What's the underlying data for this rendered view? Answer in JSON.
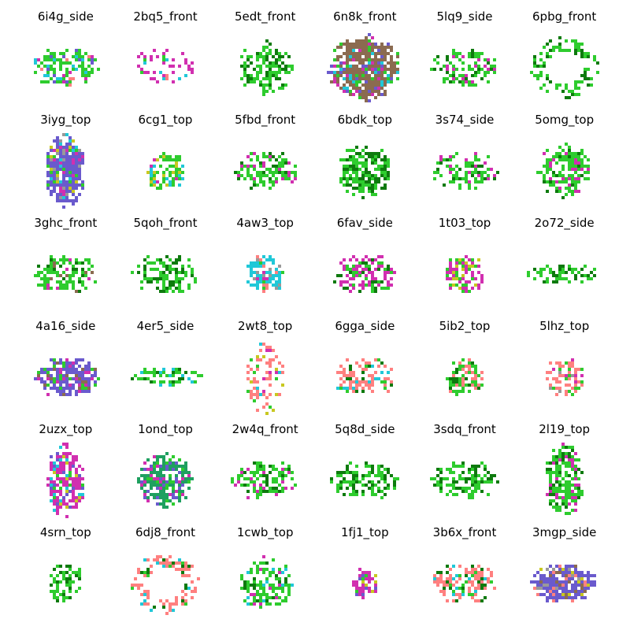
{
  "palette": [
    "#1fbf1f",
    "#2ecc2e",
    "#0e7a0e",
    "#d12fb0",
    "#ff8080",
    "#20c8d8",
    "#c8c820",
    "#6a5acd",
    "#8b6b50",
    "#999999"
  ],
  "items": [
    {
      "label": "6i4g_side",
      "dominant": "#2ecc2e",
      "mix": [
        "#ff8080",
        "#20c8d8",
        "#d12fb0",
        "#6a5acd"
      ],
      "density": 0.55,
      "shape": "wide"
    },
    {
      "label": "2bq5_front",
      "dominant": "#d12fb0",
      "mix": [
        "#2ecc2e",
        "#ff8080",
        "#20c8d8"
      ],
      "density": 0.35,
      "shape": "wide"
    },
    {
      "label": "5edt_front",
      "dominant": "#2ecc2e",
      "mix": [
        "#0e7a0e"
      ],
      "density": 0.55,
      "shape": "square"
    },
    {
      "label": "6n8k_front",
      "dominant": "#8b6b50",
      "mix": [
        "#d12fb0",
        "#2ecc2e",
        "#20c8d8",
        "#6a5acd"
      ],
      "density": 0.85,
      "shape": "big"
    },
    {
      "label": "5lq9_side",
      "dominant": "#2ecc2e",
      "mix": [
        "#0e7a0e",
        "#d12fb0"
      ],
      "density": 0.45,
      "shape": "wide"
    },
    {
      "label": "6pbg_front",
      "dominant": "#2ecc2e",
      "mix": [
        "#0e7a0e"
      ],
      "density": 0.45,
      "shape": "ring"
    },
    {
      "label": "3iyg_top",
      "dominant": "#6a5acd",
      "mix": [
        "#d12fb0",
        "#c8c820",
        "#20c8d8",
        "#2ecc2e",
        "#999999"
      ],
      "density": 0.9,
      "shape": "tall"
    },
    {
      "label": "6cg1_top",
      "dominant": "#2ecc2e",
      "mix": [
        "#d12fb0",
        "#c8c820",
        "#20c8d8"
      ],
      "density": 0.6,
      "shape": "small"
    },
    {
      "label": "5fbd_front",
      "dominant": "#2ecc2e",
      "mix": [
        "#0e7a0e",
        "#d12fb0"
      ],
      "density": 0.55,
      "shape": "wide"
    },
    {
      "label": "6bdk_top",
      "dominant": "#2ecc2e",
      "mix": [
        "#0e7a0e"
      ],
      "density": 0.65,
      "shape": "square"
    },
    {
      "label": "3s74_side",
      "dominant": "#2ecc2e",
      "mix": [
        "#0e7a0e",
        "#d12fb0"
      ],
      "density": 0.45,
      "shape": "wide"
    },
    {
      "label": "5omg_top",
      "dominant": "#2ecc2e",
      "mix": [
        "#0e7a0e",
        "#d12fb0"
      ],
      "density": 0.6,
      "shape": "square"
    },
    {
      "label": "3ghc_front",
      "dominant": "#2ecc2e",
      "mix": [
        "#0e7a0e",
        "#d12fb0",
        "#8b6b50"
      ],
      "density": 0.5,
      "shape": "wide"
    },
    {
      "label": "5qoh_front",
      "dominant": "#2ecc2e",
      "mix": [
        "#0e7a0e"
      ],
      "density": 0.45,
      "shape": "wide"
    },
    {
      "label": "4aw3_top",
      "dominant": "#20c8d8",
      "mix": [
        "#ff8080",
        "#2ecc2e",
        "#d12fb0",
        "#999999"
      ],
      "density": 0.6,
      "shape": "small"
    },
    {
      "label": "6fav_side",
      "dominant": "#d12fb0",
      "mix": [
        "#2ecc2e",
        "#0e7a0e"
      ],
      "density": 0.6,
      "shape": "wide"
    },
    {
      "label": "1t03_top",
      "dominant": "#d12fb0",
      "mix": [
        "#c8c820",
        "#2ecc2e"
      ],
      "density": 0.65,
      "shape": "small"
    },
    {
      "label": "2o72_side",
      "dominant": "#2ecc2e",
      "mix": [
        "#0e7a0e"
      ],
      "density": 0.5,
      "shape": "flat"
    },
    {
      "label": "4a16_side",
      "dominant": "#6a5acd",
      "mix": [
        "#d12fb0",
        "#8b6b50",
        "#2ecc2e"
      ],
      "density": 0.75,
      "shape": "wide"
    },
    {
      "label": "4er5_side",
      "dominant": "#2ecc2e",
      "mix": [
        "#0e7a0e",
        "#20c8d8"
      ],
      "density": 0.45,
      "shape": "flat"
    },
    {
      "label": "2wt8_top",
      "dominant": "#ff8080",
      "mix": [
        "#d12fb0",
        "#2ecc2e",
        "#c8c820",
        "#20c8d8"
      ],
      "density": 0.4,
      "shape": "tall"
    },
    {
      "label": "6gga_side",
      "dominant": "#ff8080",
      "mix": [
        "#2ecc2e",
        "#20c8d8",
        "#0e7a0e"
      ],
      "density": 0.45,
      "shape": "wide"
    },
    {
      "label": "5ib2_top",
      "dominant": "#2ecc2e",
      "mix": [
        "#ff8080",
        "#0e7a0e"
      ],
      "density": 0.6,
      "shape": "small"
    },
    {
      "label": "5lhz_top",
      "dominant": "#ff8080",
      "mix": [
        "#d12fb0",
        "#2ecc2e",
        "#999999"
      ],
      "density": 0.5,
      "shape": "small"
    },
    {
      "label": "2uzx_top",
      "dominant": "#d12fb0",
      "mix": [
        "#c8c820",
        "#2ecc2e",
        "#20c8d8",
        "#6a5acd"
      ],
      "density": 0.7,
      "shape": "tall"
    },
    {
      "label": "1ond_top",
      "dominant": "#1fa060",
      "mix": [
        "#2ecc2e",
        "#d12fb0",
        "#6a5acd"
      ],
      "density": 0.8,
      "shape": "square"
    },
    {
      "label": "2w4q_front",
      "dominant": "#2ecc2e",
      "mix": [
        "#0e7a0e",
        "#d12fb0"
      ],
      "density": 0.5,
      "shape": "wide"
    },
    {
      "label": "5q8d_side",
      "dominant": "#2ecc2e",
      "mix": [
        "#0e7a0e"
      ],
      "density": 0.55,
      "shape": "wide"
    },
    {
      "label": "3sdq_front",
      "dominant": "#2ecc2e",
      "mix": [
        "#0e7a0e"
      ],
      "density": 0.6,
      "shape": "wide"
    },
    {
      "label": "2l19_top",
      "dominant": "#2ecc2e",
      "mix": [
        "#0e7a0e",
        "#d12fb0"
      ],
      "density": 0.7,
      "shape": "tall"
    },
    {
      "label": "4srn_top",
      "dominant": "#2ecc2e",
      "mix": [
        "#0e7a0e"
      ],
      "density": 0.5,
      "shape": "small"
    },
    {
      "label": "6dj8_front",
      "dominant": "#ff8080",
      "mix": [
        "#2ecc2e",
        "#0e7a0e",
        "#20c8d8"
      ],
      "density": 0.5,
      "shape": "ring"
    },
    {
      "label": "1cwb_top",
      "dominant": "#2ecc2e",
      "mix": [
        "#0e7a0e",
        "#20c8d8",
        "#d12fb0"
      ],
      "density": 0.5,
      "shape": "square"
    },
    {
      "label": "1fj1_top",
      "dominant": "#d12fb0",
      "mix": [
        "#6a5acd",
        "#c8c820",
        "#2ecc2e"
      ],
      "density": 0.7,
      "shape": "tiny"
    },
    {
      "label": "3b6x_front",
      "dominant": "#ff8080",
      "mix": [
        "#20c8d8",
        "#2ecc2e",
        "#0e7a0e"
      ],
      "density": 0.55,
      "shape": "wide"
    },
    {
      "label": "3mgp_side",
      "dominant": "#6a5acd",
      "mix": [
        "#c8c820",
        "#8b6b50",
        "#999999",
        "#ff8080"
      ],
      "density": 0.8,
      "shape": "wide"
    }
  ]
}
